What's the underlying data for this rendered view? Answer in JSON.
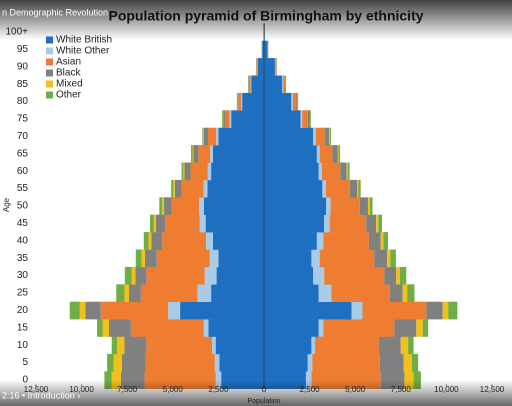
{
  "video": {
    "title": "n Demographic Revolution",
    "chapter": "2:16 • Introduction ›"
  },
  "chart_data": {
    "type": "pyramid",
    "title": "Population pyramid of Birmingham by ethnicity",
    "y_label": "Age",
    "x_label": "Population",
    "categories": [
      "0",
      "5",
      "10",
      "15",
      "20",
      "25",
      "30",
      "35",
      "40",
      "45",
      "50",
      "55",
      "60",
      "65",
      "70",
      "75",
      "80",
      "85",
      "90",
      "95",
      "100+"
    ],
    "xlim": [
      -12500,
      12500
    ],
    "xticks": [
      {
        "value": -12500,
        "label": "12,500"
      },
      {
        "value": -10000,
        "label": "10,000"
      },
      {
        "value": -7500,
        "label": "7,500"
      },
      {
        "value": -5000,
        "label": "5,000"
      },
      {
        "value": -2500,
        "label": "2,500"
      },
      0,
      {
        "value": 2500,
        "label": "2,500"
      },
      {
        "value": 5000,
        "label": "5,000"
      },
      {
        "value": 7500,
        "label": "7,500"
      },
      {
        "value": 10000,
        "label": "10,000"
      },
      {
        "value": 12500,
        "label": "12,500"
      }
    ],
    "legend": "top-left",
    "series": [
      {
        "name": "White British",
        "color": "#1f6fc0",
        "values_left": [
          -2350,
          -2450,
          -2650,
          -3050,
          -4600,
          -2900,
          -2600,
          -2500,
          -2800,
          -3200,
          -3300,
          -3100,
          -2900,
          -2800,
          -2500,
          -1800,
          -1200,
          -700,
          -350,
          -100,
          -20
        ],
        "values_right": [
          2300,
          2400,
          2600,
          3000,
          4800,
          3000,
          2700,
          2600,
          2900,
          3300,
          3400,
          3200,
          3000,
          2900,
          2700,
          2000,
          1500,
          1000,
          600,
          200,
          40
        ]
      },
      {
        "name": "White Other",
        "color": "#a8cbe8",
        "values_left": [
          -300,
          -250,
          -200,
          -250,
          -650,
          -750,
          -650,
          -480,
          -380,
          -320,
          -260,
          -210,
          -180,
          -150,
          -120,
          -90,
          -60,
          -40,
          -20,
          -8,
          -2
        ],
        "values_right": [
          300,
          250,
          200,
          250,
          600,
          700,
          600,
          450,
          350,
          300,
          250,
          200,
          180,
          150,
          130,
          100,
          80,
          50,
          30,
          10,
          2
        ]
      },
      {
        "name": "Asian",
        "color": "#ee7d31",
        "values_left": [
          -3900,
          -3800,
          -3600,
          -4000,
          -3700,
          -3100,
          -3200,
          -2900,
          -2400,
          -1900,
          -1500,
          -1200,
          -950,
          -650,
          -450,
          -250,
          -150,
          -80,
          -40,
          -15,
          -4
        ],
        "values_right": [
          3800,
          3700,
          3500,
          3900,
          3500,
          3200,
          3300,
          3000,
          2500,
          2000,
          1600,
          1300,
          1000,
          700,
          500,
          300,
          200,
          100,
          50,
          20,
          5
        ]
      },
      {
        "name": "Black",
        "color": "#808080",
        "values_left": [
          -1300,
          -1300,
          -1200,
          -1200,
          -850,
          -650,
          -600,
          -650,
          -600,
          -500,
          -420,
          -380,
          -330,
          -280,
          -220,
          -100,
          -50,
          -30,
          -15,
          -8,
          -2
        ],
        "values_right": [
          1300,
          1300,
          1200,
          1200,
          900,
          700,
          650,
          700,
          650,
          550,
          450,
          400,
          350,
          300,
          250,
          120,
          60,
          40,
          20,
          10,
          2
        ]
      },
      {
        "name": "Mixed",
        "color": "#f2c01a",
        "values_left": [
          -500,
          -450,
          -400,
          -350,
          -300,
          -250,
          -200,
          -180,
          -150,
          -120,
          -100,
          -80,
          -60,
          -40,
          -30,
          -20,
          -10,
          -10,
          -5,
          0,
          0
        ],
        "values_right": [
          500,
          450,
          400,
          350,
          300,
          250,
          200,
          180,
          150,
          120,
          100,
          80,
          60,
          40,
          30,
          20,
          10,
          10,
          5,
          0,
          0
        ]
      },
      {
        "name": "Other",
        "color": "#6fad47",
        "values_left": [
          -400,
          -350,
          -300,
          -300,
          -550,
          -450,
          -380,
          -320,
          -260,
          -210,
          -160,
          -120,
          -100,
          -80,
          -60,
          -40,
          -20,
          -10,
          -5,
          0,
          0
        ],
        "values_right": [
          400,
          350,
          300,
          300,
          500,
          400,
          350,
          300,
          250,
          200,
          150,
          120,
          100,
          80,
          60,
          40,
          20,
          10,
          5,
          0,
          0
        ]
      }
    ]
  }
}
